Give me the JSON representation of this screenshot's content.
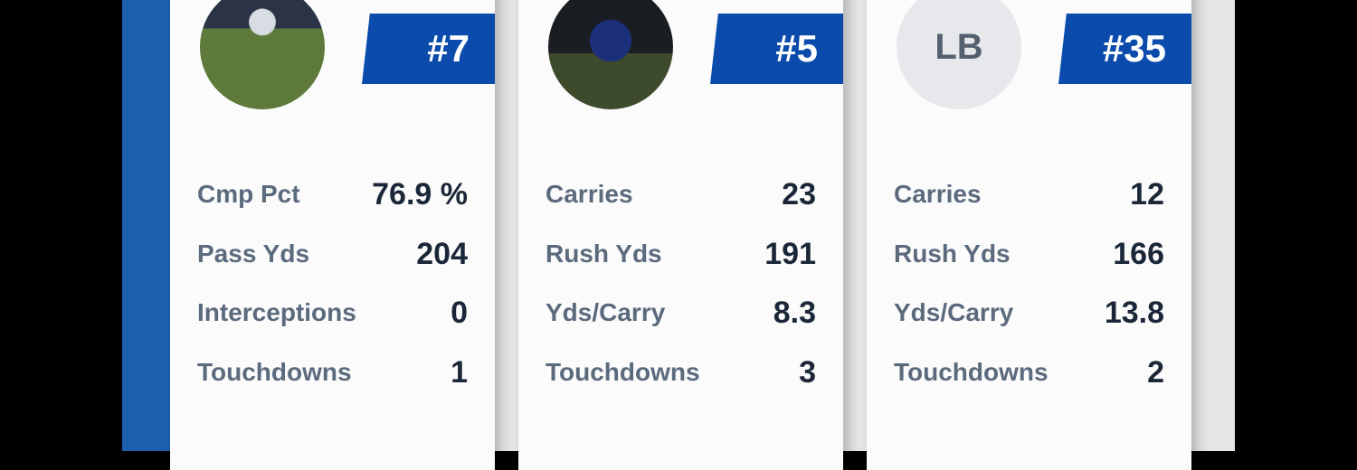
{
  "cards": [
    {
      "number": "#7",
      "stats": [
        {
          "label": "Cmp Pct",
          "value": "76.9 %"
        },
        {
          "label": "Pass Yds",
          "value": "204"
        },
        {
          "label": "Interceptions",
          "value": "0"
        },
        {
          "label": "Touchdowns",
          "value": "1"
        }
      ]
    },
    {
      "number": "#5",
      "stats": [
        {
          "label": "Carries",
          "value": "23"
        },
        {
          "label": "Rush Yds",
          "value": "191"
        },
        {
          "label": "Yds/Carry",
          "value": "8.3"
        },
        {
          "label": "Touchdowns",
          "value": "3"
        }
      ]
    },
    {
      "number": "#35",
      "initials": "LB",
      "stats": [
        {
          "label": "Carries",
          "value": "12"
        },
        {
          "label": "Rush Yds",
          "value": "166"
        },
        {
          "label": "Yds/Carry",
          "value": "13.8"
        },
        {
          "label": "Touchdowns",
          "value": "2"
        }
      ]
    }
  ]
}
